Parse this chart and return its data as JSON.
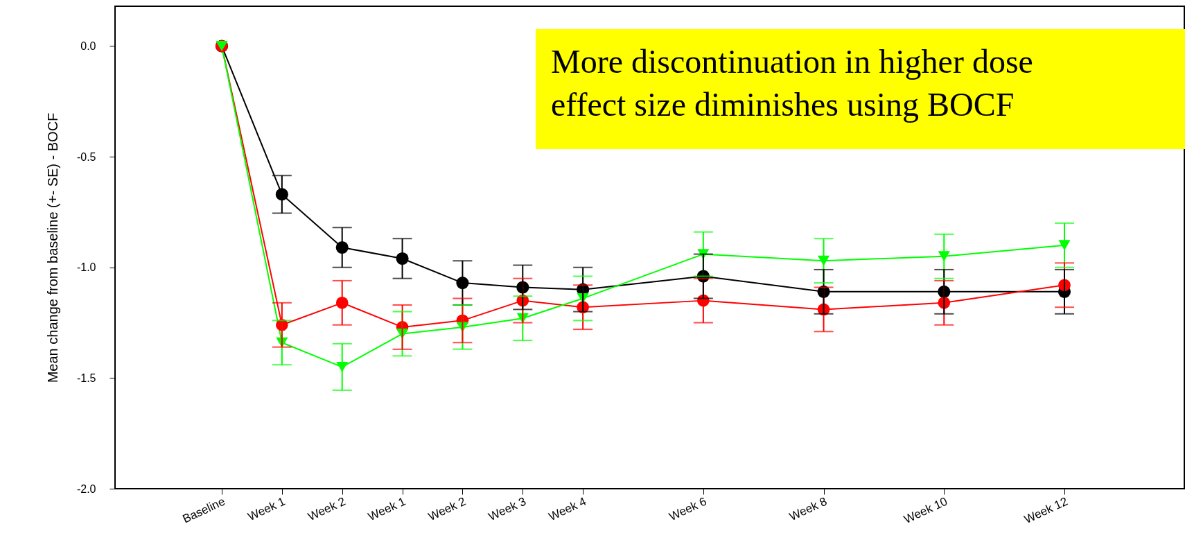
{
  "chart_data": {
    "type": "line",
    "ylabel": "Mean change from baseline (+- SE) - BOCF",
    "annotations": [
      "More discontinuation in higher dose\neffect size diminishes using BOCF"
    ],
    "categories": [
      "Baseline",
      "Week 1",
      "Week 2",
      "Week 1",
      "Week 2",
      "Week 3",
      "Week 4",
      null,
      "Week 6",
      null,
      "Week 8",
      null,
      "Week 10",
      null,
      "Week 12"
    ],
    "ylim": [
      -2,
      0.18
    ],
    "yticks": [
      {
        "value": -2,
        "label": "-2.0"
      },
      {
        "value": -1.5,
        "label": "-1.5"
      },
      {
        "value": -1,
        "label": "-1.0"
      },
      {
        "value": -0.5,
        "label": "-0.5"
      },
      {
        "value": 0,
        "label": "0.0"
      }
    ],
    "series": [
      {
        "color": "#000000",
        "marker": "circle",
        "values": [
          0,
          -0.67,
          -0.91,
          -0.96,
          -1.07,
          -1.09,
          -1.1,
          null,
          -1.04,
          null,
          -1.11,
          null,
          -1.11,
          null,
          -1.11
        ],
        "errors": [
          null,
          0.085,
          0.09,
          0.09,
          0.1,
          0.1,
          0.1,
          null,
          0.1,
          null,
          0.1,
          null,
          0.1,
          null,
          0.1
        ]
      },
      {
        "color": "#ff0000",
        "marker": "circle",
        "values": [
          0,
          -1.26,
          -1.16,
          -1.27,
          -1.24,
          -1.15,
          -1.18,
          null,
          -1.15,
          null,
          -1.19,
          null,
          -1.16,
          null,
          -1.08
        ],
        "errors": [
          null,
          0.1,
          0.1,
          0.1,
          0.1,
          0.1,
          0.1,
          null,
          0.1,
          null,
          0.1,
          null,
          0.1,
          null,
          0.1
        ]
      },
      {
        "color": "#00ff00",
        "marker": "triangle",
        "values": [
          0,
          -1.34,
          -1.45,
          -1.3,
          -1.27,
          -1.23,
          -1.14,
          null,
          -0.94,
          null,
          -0.97,
          null,
          -0.95,
          null,
          -0.9
        ],
        "errors": [
          null,
          0.1,
          0.105,
          0.1,
          0.1,
          0.1,
          0.1,
          null,
          0.1,
          null,
          0.1,
          null,
          0.1,
          null,
          0.1
        ]
      }
    ]
  }
}
